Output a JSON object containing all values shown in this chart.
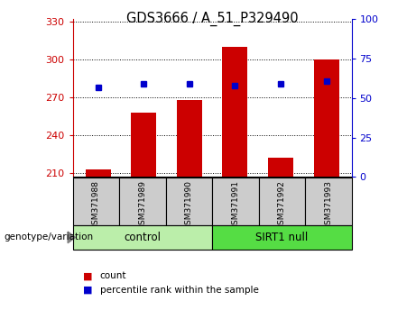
{
  "title": "GDS3666 / A_51_P329490",
  "samples": [
    "GSM371988",
    "GSM371989",
    "GSM371990",
    "GSM371991",
    "GSM371992",
    "GSM371993"
  ],
  "red_values": [
    213,
    258,
    268,
    310,
    222,
    300
  ],
  "blue_values": [
    57,
    59,
    59,
    58,
    59,
    61
  ],
  "ylim_left": [
    207,
    332
  ],
  "ylim_right": [
    0,
    100
  ],
  "yticks_left": [
    210,
    240,
    270,
    300,
    330
  ],
  "yticks_right": [
    0,
    25,
    50,
    75,
    100
  ],
  "left_color": "#cc0000",
  "blue_color": "#0000cc",
  "group_label": "genotype/variation",
  "legend_count": "count",
  "legend_percentile": "percentile rank within the sample",
  "bar_width": 0.55,
  "control_color": "#bbeeaa",
  "sirt1_color": "#55dd44",
  "label_bg_color": "#cccccc"
}
